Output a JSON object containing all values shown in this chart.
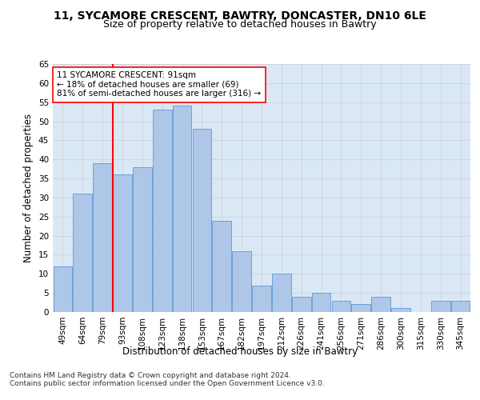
{
  "title_line1": "11, SYCAMORE CRESCENT, BAWTRY, DONCASTER, DN10 6LE",
  "title_line2": "Size of property relative to detached houses in Bawtry",
  "xlabel": "Distribution of detached houses by size in Bawtry",
  "ylabel": "Number of detached properties",
  "bin_labels": [
    "49sqm",
    "64sqm",
    "79sqm",
    "93sqm",
    "108sqm",
    "123sqm",
    "138sqm",
    "153sqm",
    "167sqm",
    "182sqm",
    "197sqm",
    "212sqm",
    "226sqm",
    "241sqm",
    "256sqm",
    "271sqm",
    "286sqm",
    "300sqm",
    "315sqm",
    "330sqm",
    "345sqm"
  ],
  "bar_heights": [
    12,
    31,
    39,
    36,
    38,
    53,
    54,
    48,
    24,
    16,
    7,
    10,
    4,
    5,
    3,
    2,
    4,
    1,
    0,
    3,
    3
  ],
  "bar_color": "#AEC6E8",
  "bar_edge_color": "#5B9BD5",
  "vline_color": "red",
  "vline_pos": 2.5,
  "annotation_text": "11 SYCAMORE CRESCENT: 91sqm\n← 18% of detached houses are smaller (69)\n81% of semi-detached houses are larger (316) →",
  "annotation_box_color": "white",
  "annotation_box_edge": "red",
  "ylim": [
    0,
    65
  ],
  "yticks": [
    0,
    5,
    10,
    15,
    20,
    25,
    30,
    35,
    40,
    45,
    50,
    55,
    60,
    65
  ],
  "grid_color": "#CCCCCC",
  "background_color": "#DAE8F5",
  "footer_text": "Contains HM Land Registry data © Crown copyright and database right 2024.\nContains public sector information licensed under the Open Government Licence v3.0.",
  "title_fontsize": 10,
  "subtitle_fontsize": 9,
  "axis_label_fontsize": 8.5,
  "tick_fontsize": 7.5,
  "annotation_fontsize": 7.5,
  "footer_fontsize": 6.5
}
